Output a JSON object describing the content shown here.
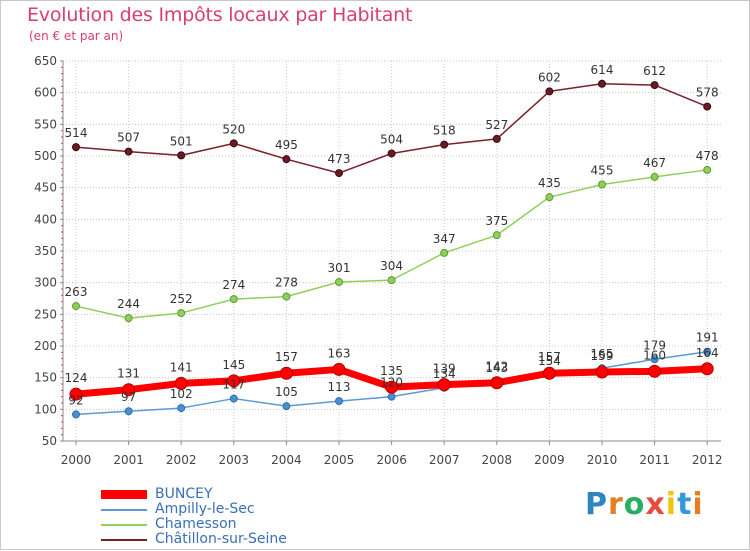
{
  "title": "Evolution des Impôts locaux par Habitant",
  "subtitle": "(en € et par an)",
  "logo": {
    "letters": [
      "P",
      "r",
      "o",
      "x",
      "i",
      "t",
      "i"
    ],
    "colors": [
      "#2e86c1",
      "#e67e22",
      "#27ae60",
      "#e74c3c",
      "#f1c40f",
      "#3498db",
      "#e67e22"
    ]
  },
  "chart_data": {
    "type": "line",
    "title": "Evolution des Impôts locaux par Habitant",
    "subtitle": "(en € et par an)",
    "xlabel": "",
    "ylabel": "",
    "x": [
      "2000",
      "2001",
      "2002",
      "2003",
      "2004",
      "2005",
      "2006",
      "2007",
      "2008",
      "2009",
      "2010",
      "2011",
      "2012"
    ],
    "ylim": [
      50,
      650
    ],
    "yticks": [
      50,
      100,
      150,
      200,
      250,
      300,
      350,
      400,
      450,
      500,
      550,
      600,
      650
    ],
    "grid": true,
    "legend_position": "bottom-left",
    "series": [
      {
        "name": "BUNCEY",
        "color": "#ff0000",
        "values": [
          124,
          131,
          141,
          145,
          157,
          163,
          135,
          139,
          142,
          157,
          159,
          160,
          164
        ]
      },
      {
        "name": "Ampilly-le-Sec",
        "color": "#5b9bd5",
        "values": [
          92,
          97,
          102,
          117,
          105,
          113,
          120,
          134,
          143,
          154,
          165,
          179,
          191
        ]
      },
      {
        "name": "Chamesson",
        "color": "#90d05a",
        "values": [
          263,
          244,
          252,
          274,
          278,
          301,
          304,
          347,
          375,
          435,
          455,
          467,
          478
        ]
      },
      {
        "name": "Châtillon-sur-Seine",
        "color": "#7b1f2b",
        "values": [
          514,
          507,
          501,
          520,
          495,
          473,
          504,
          518,
          527,
          602,
          614,
          612,
          578
        ]
      }
    ]
  }
}
